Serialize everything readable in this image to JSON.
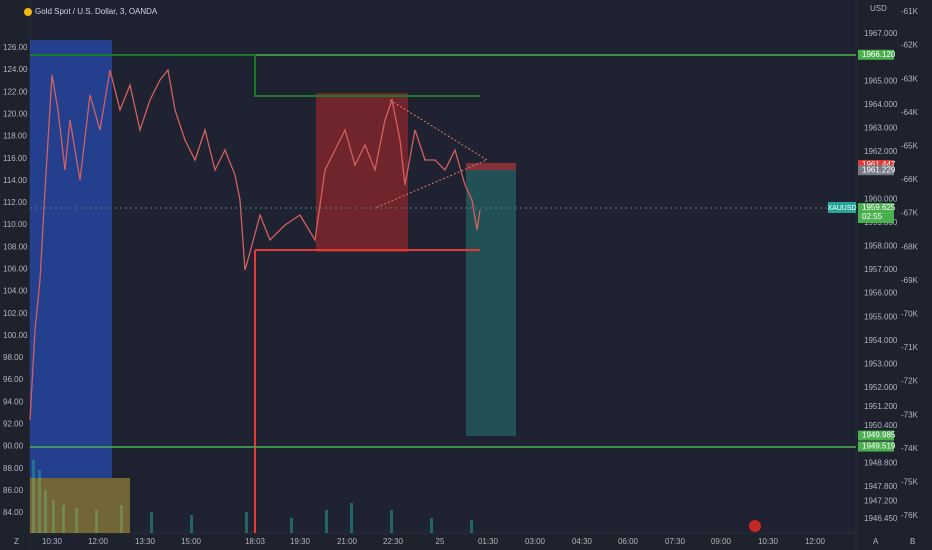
{
  "header": {
    "title": "Gold Spot / U.S. Dollar, 3, OANDA",
    "currency": "USD"
  },
  "left_axis": [
    "126.00",
    "124.00",
    "122.00",
    "120.00",
    "118.00",
    "116.00",
    "114.00",
    "112.00",
    "110.00",
    "108.00",
    "106.00",
    "104.00",
    "102.00",
    "100.00",
    "98.00",
    "96.00",
    "94.00",
    "92.00",
    "90.00",
    "88.00",
    "86.00",
    "84.00"
  ],
  "right_axis": [
    "1967.000",
    "1965.000",
    "1964.000",
    "1963.000",
    "1962.000",
    "1960.000",
    "1959.000",
    "1958.000",
    "1957.000",
    "1956.000",
    "1955.000",
    "1954.000",
    "1953.000",
    "1952.000",
    "1951.200",
    "1950.400",
    "1948.800",
    "1947.800",
    "1947.200",
    "1946.450"
  ],
  "price_badges": [
    {
      "label": "1966.120",
      "kind": "green"
    },
    {
      "label": "1961.447",
      "kind": "red"
    },
    {
      "label": "1961.229",
      "kind": "gray"
    },
    {
      "label": "1959.625",
      "kind": "green",
      "sub": "02:55"
    },
    {
      "label": "1949.985",
      "kind": "green"
    },
    {
      "label": "1949.519",
      "kind": "green"
    }
  ],
  "symbol_tag": "XAUUSD",
  "far_right_axis": [
    "-61K",
    "-62K",
    "-63K",
    "-64K",
    "-65K",
    "-66K",
    "-67K",
    "-68K",
    "-69K",
    "-70K",
    "-71K",
    "-72K",
    "-73K",
    "-74K",
    "-75K",
    "-76K"
  ],
  "time_axis": [
    "10:30",
    "12:00",
    "13:30",
    "15:00",
    "18:03",
    "19:30",
    "21:00",
    "22:30",
    "25",
    "01:30",
    "03:00",
    "04:30",
    "06:00",
    "07:30",
    "09:00",
    "10:30",
    "12:00"
  ],
  "corner_left": "Z",
  "corner_a": "A",
  "corner_b": "B"
}
